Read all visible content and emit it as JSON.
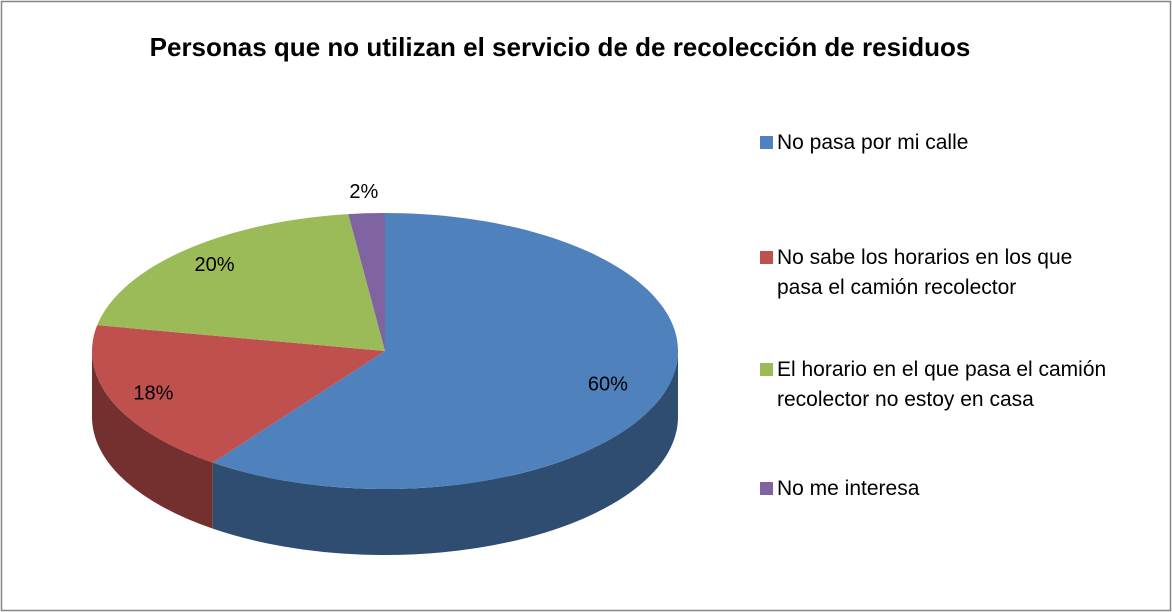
{
  "chart_data": {
    "type": "pie3d",
    "title": "Personas que no utilizan el servicio de de recolección de residuos",
    "categories": [
      "No pasa por mi calle",
      "No sabe los horarios en los que pasa el camión recolector",
      "El horario en el que pasa el camión recolector no estoy en casa",
      "No me interesa"
    ],
    "values": [
      60,
      18,
      20,
      2
    ],
    "value_labels": [
      "60%",
      "18%",
      "20%",
      "2%"
    ],
    "colors": [
      "#4f81bd",
      "#c0504d",
      "#9bbb59",
      "#8064a2"
    ],
    "legend": "right"
  }
}
